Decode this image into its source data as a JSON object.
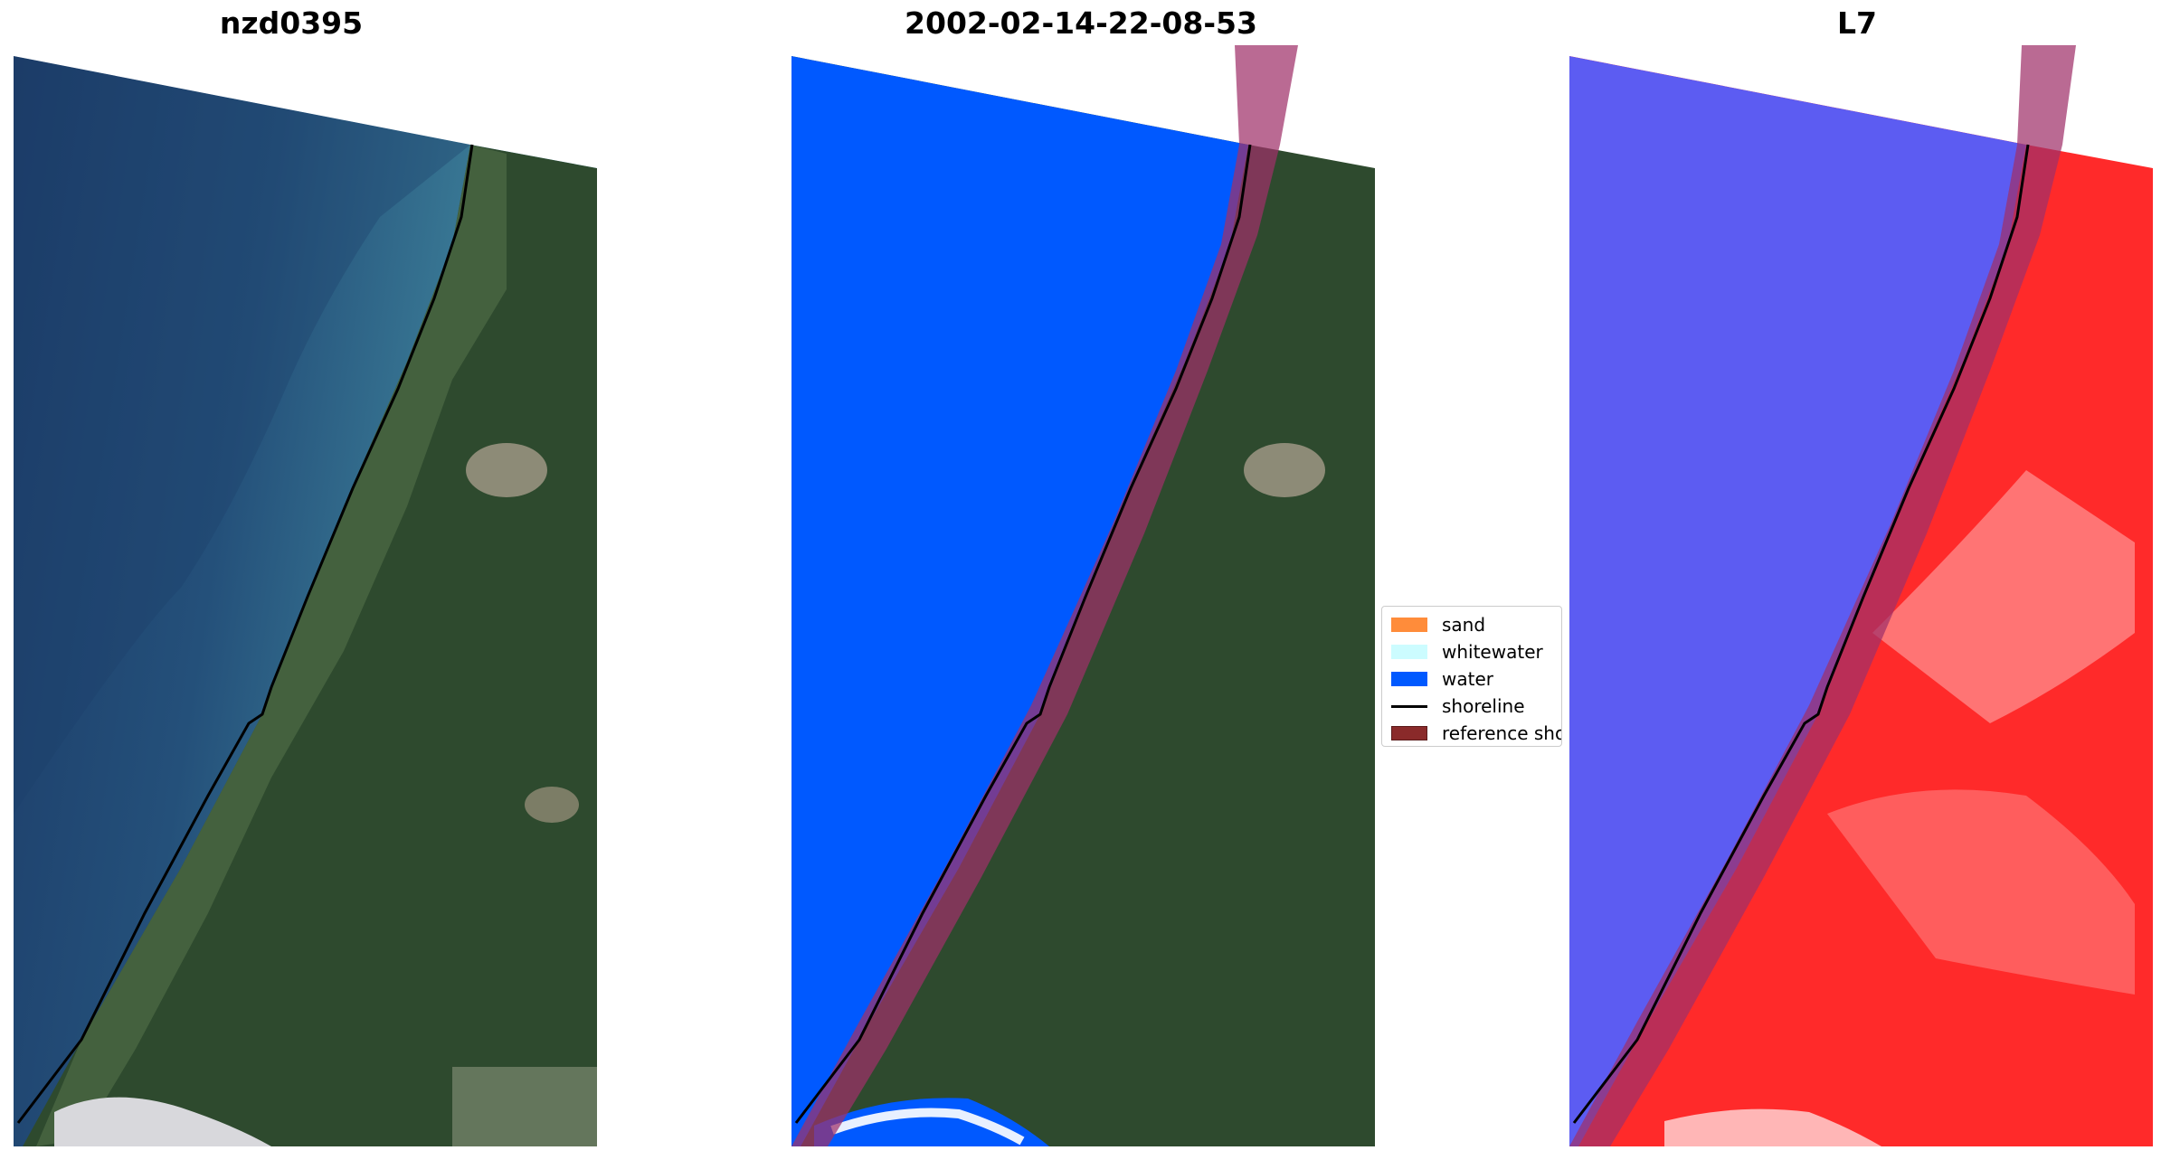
{
  "panels": [
    {
      "title": "nzd0395"
    },
    {
      "title": "2002-02-14-22-08-53"
    },
    {
      "title": "L7"
    }
  ],
  "legend": {
    "items": [
      {
        "label": "sand",
        "color": "#ff8c3a",
        "kind": "patch"
      },
      {
        "label": "whitewater",
        "color": "#ccfcff",
        "kind": "patch"
      },
      {
        "label": "water",
        "color": "#0059ff",
        "kind": "patch"
      },
      {
        "label": "shoreline",
        "color": "#000000",
        "kind": "line"
      },
      {
        "label": "reference shoreline",
        "color": "#8a2a2a",
        "kind": "patch"
      }
    ]
  },
  "colors": {
    "ocean_deep": "#1d3e6b",
    "ocean_shallow": "#3e7e9a",
    "land": "#2f4a2e",
    "water_class": "#0059ff",
    "reference_buffer": "#a0306a",
    "index_water": "#5a5af0",
    "index_land": "#ff2020"
  }
}
